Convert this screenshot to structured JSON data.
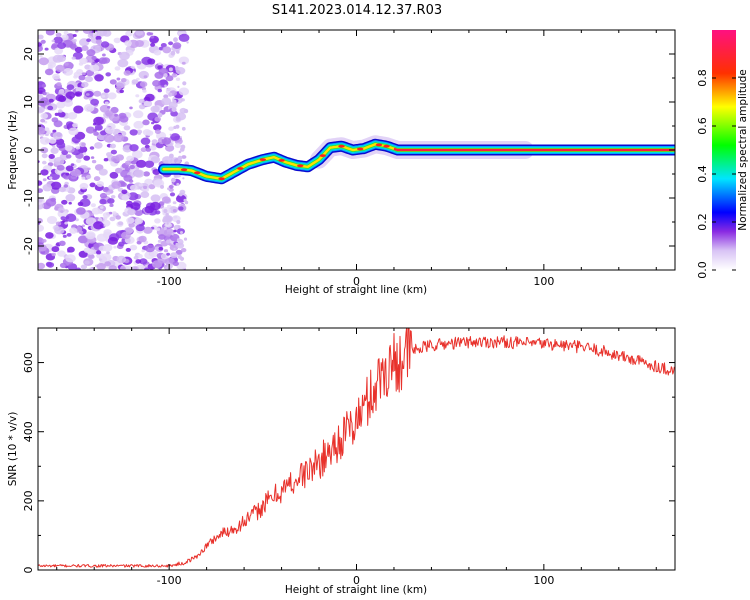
{
  "title": "S141.2023.014.12.37.R03",
  "chart_data": [
    {
      "type": "heatmap",
      "xlabel": "Height of straight line (km)",
      "ylabel": "Frequency (Hz)",
      "xlim": [
        -170,
        170
      ],
      "ylim": [
        -25,
        25
      ],
      "x_ticks": [
        -100,
        0,
        100
      ],
      "y_ticks": [
        -20,
        -10,
        0,
        10,
        20
      ],
      "noise_region_x": [
        -170,
        -100
      ],
      "ridge": {
        "x": [
          -103,
          -95,
          -88,
          -80,
          -72,
          -65,
          -58,
          -50,
          -44,
          -38,
          -32,
          -26,
          -20,
          -14,
          -8,
          -2,
          4,
          10,
          16,
          22,
          30,
          40,
          60,
          80,
          100,
          130,
          170
        ],
        "frequency": [
          -4,
          -4,
          -4.3,
          -5.5,
          -6,
          -4.5,
          -3,
          -2,
          -1.5,
          -2.5,
          -3.2,
          -3.5,
          -2,
          0.5,
          0.8,
          0,
          0.3,
          1.2,
          0.8,
          0,
          0,
          0,
          0,
          0,
          0,
          0,
          0
        ]
      },
      "colorbar": {
        "label": "Normalized spectral amplitude",
        "range": [
          0,
          1
        ],
        "ticks": [
          0.0,
          0.2,
          0.4,
          0.6,
          0.8
        ]
      }
    },
    {
      "type": "line",
      "xlabel": "Height of straight line (km)",
      "ylabel": "SNR (10 * v/v)",
      "xlim": [
        -170,
        170
      ],
      "ylim": [
        0,
        700
      ],
      "x_ticks": [
        -100,
        0,
        100
      ],
      "y_ticks": [
        0,
        200,
        400,
        600
      ],
      "color": "#e8322c",
      "series_envelope": {
        "x": [
          -170,
          -100,
          -92,
          -85,
          -80,
          -75,
          -70,
          -65,
          -60,
          -55,
          -50,
          -45,
          -40,
          -35,
          -30,
          -25,
          -20,
          -15,
          -10,
          -5,
          0,
          5,
          10,
          15,
          20,
          25,
          30,
          40,
          50,
          60,
          70,
          80,
          90,
          100,
          110,
          120,
          130,
          140,
          150,
          160,
          170
        ],
        "snr": [
          12,
          12,
          20,
          40,
          70,
          95,
          110,
          120,
          140,
          160,
          185,
          210,
          230,
          250,
          270,
          290,
          310,
          340,
          370,
          400,
          430,
          480,
          530,
          580,
          600,
          620,
          635,
          650,
          655,
          660,
          660,
          660,
          655,
          655,
          650,
          645,
          635,
          620,
          605,
          590,
          575
        ]
      }
    }
  ]
}
